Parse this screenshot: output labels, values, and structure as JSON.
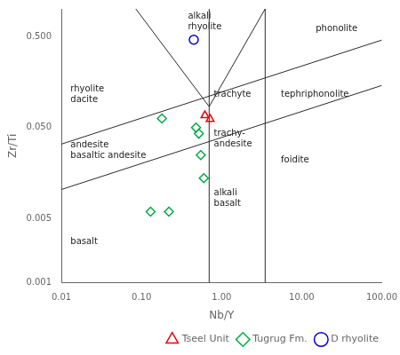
{
  "chart_data": {
    "type": "scatter",
    "xlabel": "Nb/Y",
    "ylabel": "Zr/Ti",
    "log": true,
    "grid": false,
    "legend": "lower right",
    "xlim": [
      0.01,
      100.0
    ],
    "ylim": [
      0.001,
      1.0
    ],
    "xticks": [
      0.01,
      {
        "value": 0.1,
        "label": "0.10"
      },
      {
        "value": 1.0,
        "label": "1.00"
      },
      {
        "value": 10.0,
        "label": "10.00"
      },
      {
        "value": 100.0,
        "label": "100.00"
      }
    ],
    "yticks": [
      0.001,
      0.005,
      {
        "value": 0.05,
        "label": "0.050"
      },
      {
        "value": 0.5,
        "label": "0.500"
      }
    ],
    "series": [
      {
        "type": "line",
        "color": "#2a2a2a",
        "x": [
          0.085,
          0.7
        ],
        "values": [
          1.0,
          0.085
        ]
      },
      {
        "type": "line",
        "color": "#2a2a2a",
        "x": [
          0.7,
          3.5
        ],
        "values": [
          0.085,
          1.0
        ]
      },
      {
        "type": "line",
        "color": "#2a2a2a",
        "x": [
          0.7,
          0.7
        ],
        "values": [
          0.001,
          1.0
        ]
      },
      {
        "type": "line",
        "color": "#2a2a2a",
        "x": [
          3.5,
          3.5
        ],
        "values": [
          0.001,
          1.0
        ]
      },
      {
        "type": "line",
        "color": "#2a2a2a",
        "x": [
          0.01,
          100.0
        ],
        "values": [
          0.033,
          0.4555268
        ]
      },
      {
        "type": "line",
        "color": "#2a2a2a",
        "x": [
          0.01,
          100.0
        ],
        "values": [
          0.0105,
          0.1449404
        ]
      },
      {
        "type": "scatter",
        "name": "Tseel Unit",
        "color": "#e8000d",
        "marker": "triangle",
        "x": [
          0.62,
          0.72
        ],
        "values": [
          0.068,
          0.062
        ]
      },
      {
        "type": "scatter",
        "name": "Tugrug Fm.",
        "color": "#00aa44",
        "marker": "diamond",
        "x": [
          0.18,
          0.48,
          0.52,
          0.55,
          0.13,
          0.22,
          0.6
        ],
        "values": [
          0.063,
          0.05,
          0.043,
          0.025,
          0.006,
          0.006,
          0.014
        ]
      },
      {
        "type": "scatter",
        "name": "D rhyolite",
        "color": "#0000cc",
        "marker": "circle",
        "x": [
          0.45
        ],
        "values": [
          0.46
        ]
      }
    ],
    "annotations": [
      {
        "text": "alkali\nrhyolite",
        "x": 0.38,
        "y": 0.72
      },
      {
        "text": "phonolite",
        "x": 15.0,
        "y": 0.6
      },
      {
        "text": "rhyolite\ndacite",
        "x": 0.013,
        "y": 0.115
      },
      {
        "text": "trachyte",
        "x": 0.8,
        "y": 0.115
      },
      {
        "text": "tephriphonolite",
        "x": 5.5,
        "y": 0.115
      },
      {
        "text": "andesite\nbasaltic andesite",
        "x": 0.013,
        "y": 0.028
      },
      {
        "text": "trachy-\nandesite",
        "x": 0.8,
        "y": 0.038
      },
      {
        "text": "foidite",
        "x": 5.5,
        "y": 0.022
      },
      {
        "text": "alkali\nbasalt",
        "x": 0.8,
        "y": 0.0085
      },
      {
        "text": "basalt",
        "x": 0.013,
        "y": 0.0028
      }
    ]
  }
}
